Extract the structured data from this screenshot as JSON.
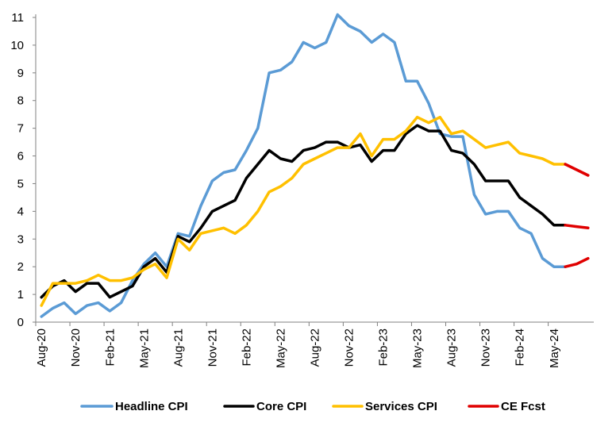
{
  "chart_data": {
    "type": "line",
    "title": "",
    "xlabel": "",
    "ylabel": "",
    "ylim": [
      0,
      11
    ],
    "yticks": [
      0,
      1,
      2,
      3,
      4,
      5,
      6,
      7,
      8,
      9,
      10,
      11
    ],
    "grid": false,
    "legend_position": "bottom",
    "x": [
      "Aug-20",
      "Sep-20",
      "Oct-20",
      "Nov-20",
      "Dec-20",
      "Jan-21",
      "Feb-21",
      "Mar-21",
      "Apr-21",
      "May-21",
      "Jun-21",
      "Jul-21",
      "Aug-21",
      "Sep-21",
      "Oct-21",
      "Nov-21",
      "Dec-21",
      "Jan-22",
      "Feb-22",
      "Mar-22",
      "Apr-22",
      "May-22",
      "Jun-22",
      "Jul-22",
      "Aug-22",
      "Sep-22",
      "Oct-22",
      "Nov-22",
      "Dec-22",
      "Jan-23",
      "Feb-23",
      "Mar-23",
      "Apr-23",
      "May-23",
      "Jun-23",
      "Jul-23",
      "Aug-23",
      "Sep-23",
      "Oct-23",
      "Nov-23",
      "Dec-23",
      "Jan-24",
      "Feb-24",
      "Mar-24",
      "Apr-24",
      "May-24",
      "Jun-24",
      "Jul-24",
      "Aug-24"
    ],
    "x_tick_labels": [
      {
        "x": "Aug-20",
        "label": "Aug-20"
      },
      {
        "x": "Nov-20",
        "label": "Nov-20"
      },
      {
        "x": "Feb-21",
        "label": "Feb-21"
      },
      {
        "x": "May-21",
        "label": "May-21"
      },
      {
        "x": "Aug-21",
        "label": "Aug-21"
      },
      {
        "x": "Nov-21",
        "label": "Nov-21"
      },
      {
        "x": "Feb-22",
        "label": "Feb-22"
      },
      {
        "x": "May-22",
        "label": "May-22"
      },
      {
        "x": "Aug-22",
        "label": "Aug-22"
      },
      {
        "x": "Nov-22",
        "label": "Nov-22"
      },
      {
        "x": "Feb-23",
        "label": "Feb-23"
      },
      {
        "x": "May-23",
        "label": "May-23"
      },
      {
        "x": "Aug-23",
        "label": "Aug-23"
      },
      {
        "x": "Nov-23",
        "label": "Nov-23"
      },
      {
        "x": "Feb-24",
        "label": "Feb-24"
      },
      {
        "x": "May-24",
        "label": "May-24"
      }
    ],
    "series": [
      {
        "name": "Headline CPI",
        "color": "#5B9BD5",
        "values": [
          0.2,
          0.5,
          0.7,
          0.3,
          0.6,
          0.7,
          0.4,
          0.7,
          1.5,
          2.1,
          2.5,
          2.0,
          3.2,
          3.1,
          4.2,
          5.1,
          5.4,
          5.5,
          6.2,
          7.0,
          9.0,
          9.1,
          9.4,
          10.1,
          9.9,
          10.1,
          11.1,
          10.7,
          10.5,
          10.1,
          10.4,
          10.1,
          8.7,
          8.7,
          7.9,
          6.8,
          6.7,
          6.7,
          4.6,
          3.9,
          4.0,
          4.0,
          3.4,
          3.2,
          2.3,
          2.0,
          2.0,
          null,
          null
        ]
      },
      {
        "name": "Core CPI",
        "color": "#000000",
        "values": [
          0.9,
          1.3,
          1.5,
          1.1,
          1.4,
          1.4,
          0.9,
          1.1,
          1.3,
          2.0,
          2.3,
          1.8,
          3.1,
          2.9,
          3.4,
          4.0,
          4.2,
          4.4,
          5.2,
          5.7,
          6.2,
          5.9,
          5.8,
          6.2,
          6.3,
          6.5,
          6.5,
          6.3,
          6.4,
          5.8,
          6.2,
          6.2,
          6.8,
          7.1,
          6.9,
          6.9,
          6.2,
          6.1,
          5.7,
          5.1,
          5.1,
          5.1,
          4.5,
          4.2,
          3.9,
          3.5,
          3.5,
          null,
          null
        ]
      },
      {
        "name": "Services CPI",
        "color": "#FFC000",
        "values": [
          0.6,
          1.4,
          1.4,
          1.4,
          1.5,
          1.7,
          1.5,
          1.5,
          1.6,
          1.9,
          2.1,
          1.6,
          3.0,
          2.6,
          3.2,
          3.3,
          3.4,
          3.2,
          3.5,
          4.0,
          4.7,
          4.9,
          5.2,
          5.7,
          5.9,
          6.1,
          6.3,
          6.3,
          6.8,
          6.0,
          6.6,
          6.6,
          6.9,
          7.4,
          7.2,
          7.4,
          6.8,
          6.9,
          6.6,
          6.3,
          6.4,
          6.5,
          6.1,
          6.0,
          5.9,
          5.7,
          5.7,
          null,
          null
        ]
      },
      {
        "name": "CE Fcst",
        "color": "#E00000",
        "segments": [
          {
            "start": "Jun-24",
            "values": [
              2.0,
              2.1,
              2.3
            ]
          },
          {
            "start": "Jun-24",
            "values": [
              3.5,
              3.45,
              3.4
            ]
          },
          {
            "start": "Jun-24",
            "values": [
              5.7,
              5.5,
              5.3
            ]
          }
        ]
      }
    ],
    "legend": [
      {
        "label": "Headline CPI",
        "color": "#5B9BD5"
      },
      {
        "label": "Core CPI",
        "color": "#000000"
      },
      {
        "label": "Services CPI",
        "color": "#FFC000"
      },
      {
        "label": "CE Fcst",
        "color": "#E00000"
      }
    ]
  }
}
